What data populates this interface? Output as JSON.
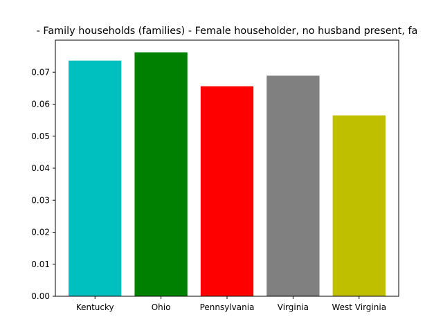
{
  "chart_data": {
    "type": "bar",
    "title": "- Family households (families) - Female householder, no husband present, fa",
    "xlabel": "",
    "ylabel": "",
    "categories": [
      "Kentucky",
      "Ohio",
      "Pennsylvania",
      "Virginia",
      "West Virginia"
    ],
    "values": [
      0.0736,
      0.0762,
      0.0656,
      0.0689,
      0.0565
    ],
    "colors": [
      "#00bfbf",
      "#008000",
      "#ff0000",
      "#808080",
      "#bfbf00"
    ],
    "ylim": [
      0,
      0.08
    ],
    "yticks": [
      0.0,
      0.01,
      0.02,
      0.03,
      0.04,
      0.05,
      0.06,
      0.07
    ],
    "ytick_labels": [
      "0.00",
      "0.01",
      "0.02",
      "0.03",
      "0.04",
      "0.05",
      "0.06",
      "0.07"
    ],
    "grid": false,
    "legend": "none"
  }
}
